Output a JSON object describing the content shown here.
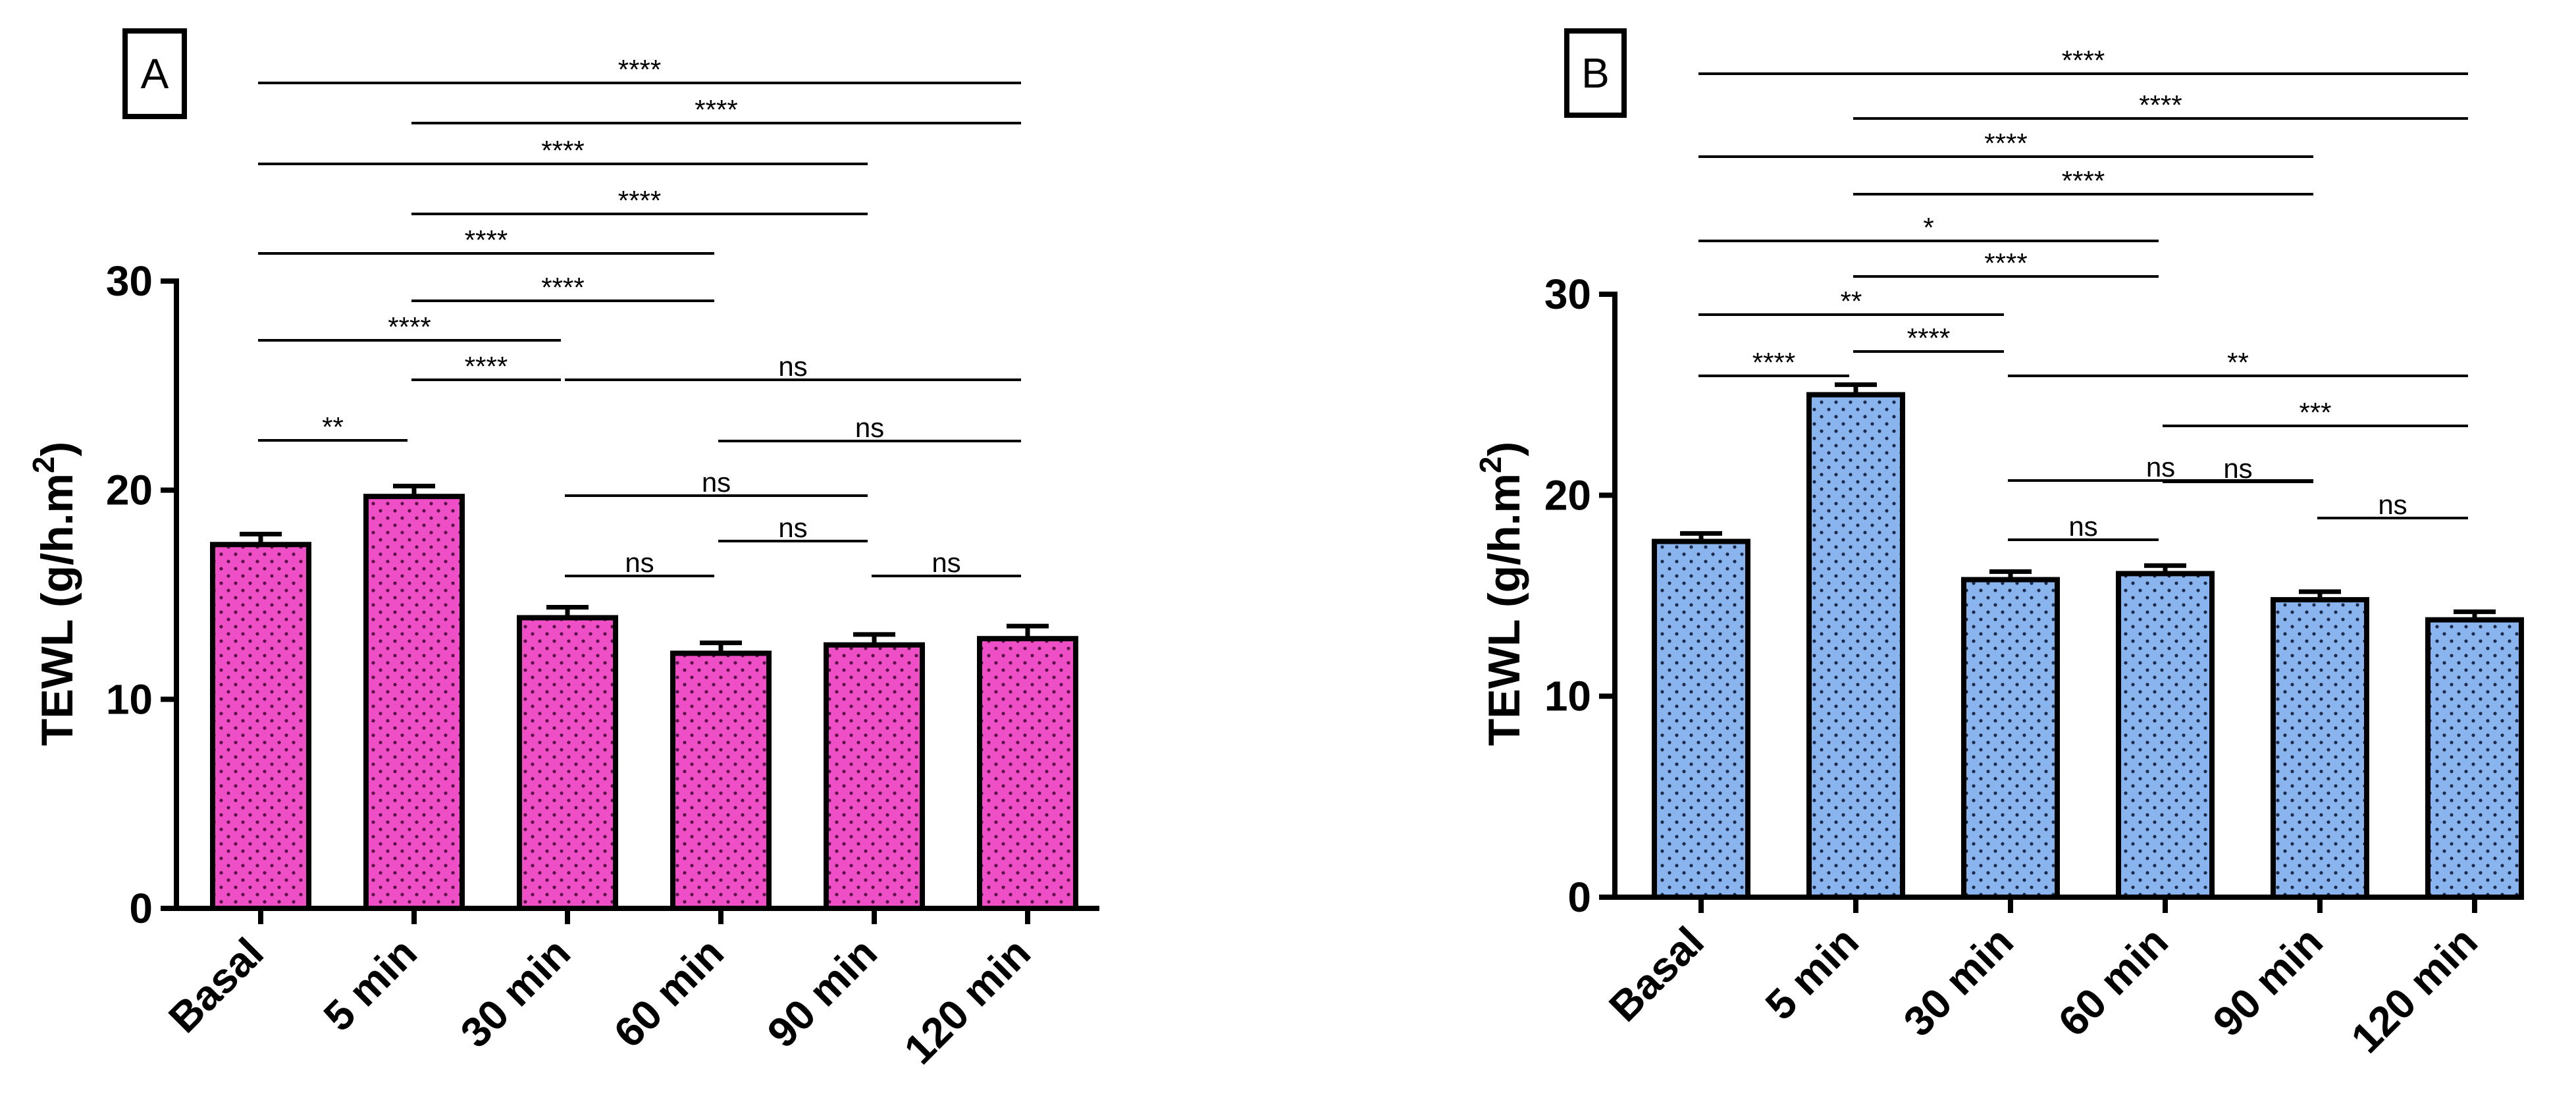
{
  "chart_data": [
    {
      "type": "bar",
      "panel_label": "A",
      "categories": [
        "Basal",
        "5 min",
        "30 min",
        "60 min",
        "90 min",
        "120 min"
      ],
      "values": [
        17.4,
        19.7,
        13.9,
        12.2,
        12.6,
        12.9
      ],
      "errors": [
        0.5,
        0.5,
        0.5,
        0.5,
        0.5,
        0.6
      ],
      "ylabel_main": "TEWL (g/h.m",
      "ylabel_sup": "2",
      "ylabel_tail": ")",
      "ylim": [
        0,
        30
      ],
      "yticks": [
        "0",
        "10",
        "20",
        "30"
      ],
      "bar_color": "#ee4fc6",
      "dot_color": "#5a1046",
      "grid": false,
      "significance": [
        {
          "from": "Basal",
          "to": "5 min",
          "label": "**"
        },
        {
          "from": "5 min",
          "to": "30 min",
          "label": "****"
        },
        {
          "from": "30 min",
          "to": "120 min",
          "label": "ns"
        },
        {
          "from": "Basal",
          "to": "30 min",
          "label": "****"
        },
        {
          "from": "60 min",
          "to": "120 min",
          "label": "ns"
        },
        {
          "from": "5 min",
          "to": "60 min",
          "label": "****"
        },
        {
          "from": "30 min",
          "to": "90 min",
          "label": "ns"
        },
        {
          "from": "Basal",
          "to": "60 min",
          "label": "****"
        },
        {
          "from": "60 min",
          "to": "90 min",
          "label": "ns"
        },
        {
          "from": "5 min",
          "to": "90 min",
          "label": "****"
        },
        {
          "from": "30 min",
          "to": "60 min",
          "label": "ns"
        },
        {
          "from": "Basal",
          "to": "90 min",
          "label": "****"
        },
        {
          "from": "90 min",
          "to": "120 min",
          "label": "ns"
        },
        {
          "from": "5 min",
          "to": "120 min",
          "label": "****"
        },
        {
          "from": "Basal",
          "to": "120 min",
          "label": "****"
        }
      ]
    },
    {
      "type": "bar",
      "panel_label": "B",
      "categories": [
        "Basal",
        "5 min",
        "30 min",
        "60 min",
        "90 min",
        "120 min"
      ],
      "values": [
        17.7,
        25.0,
        15.8,
        16.1,
        14.8,
        13.8
      ],
      "errors": [
        0.4,
        0.5,
        0.4,
        0.4,
        0.4,
        0.4
      ],
      "ylabel_main": "TEWL (g/h.m",
      "ylabel_sup": "2",
      "ylabel_tail": ")",
      "ylim": [
        0,
        30
      ],
      "yticks": [
        "0",
        "10",
        "20",
        "30"
      ],
      "bar_color": "#8ab4ee",
      "dot_color": "#1b2a4a",
      "grid": false,
      "significance": [
        {
          "from": "Basal",
          "to": "5 min",
          "label": "****"
        },
        {
          "from": "5 min",
          "to": "30 min",
          "label": "****"
        },
        {
          "from": "30 min",
          "to": "120 min",
          "label": "**"
        },
        {
          "from": "Basal",
          "to": "30 min",
          "label": "**"
        },
        {
          "from": "60 min",
          "to": "120 min",
          "label": "***"
        },
        {
          "from": "30 min",
          "to": "60 min",
          "label": "ns"
        },
        {
          "from": "60 min",
          "to": "90 min",
          "label": "ns"
        },
        {
          "from": "90 min",
          "to": "120 min",
          "label": "ns"
        },
        {
          "from": "30 min",
          "to": "90 min",
          "label": "ns"
        },
        {
          "from": "5 min",
          "to": "60 min",
          "label": "****"
        },
        {
          "from": "Basal",
          "to": "60 min",
          "label": "*"
        },
        {
          "from": "5 min",
          "to": "90 min",
          "label": "****"
        },
        {
          "from": "Basal",
          "to": "90 min",
          "label": "****"
        },
        {
          "from": "5 min",
          "to": "120 min",
          "label": "****"
        },
        {
          "from": "Basal",
          "to": "120 min",
          "label": "****"
        }
      ]
    }
  ]
}
